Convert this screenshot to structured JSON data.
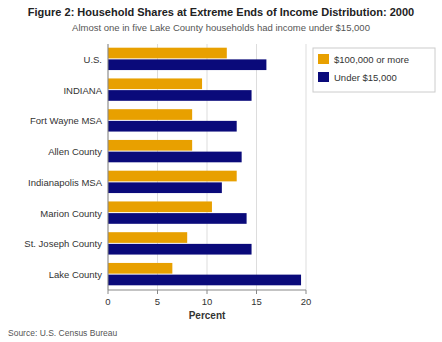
{
  "chart_data": {
    "type": "bar",
    "orientation": "horizontal",
    "title": "Figure 2: Household Shares at Extreme Ends of Income Distribution: 2000",
    "subtitle": "Almost one in five Lake County households had income under $15,000",
    "categories": [
      "U.S.",
      "INDIANA",
      "Fort Wayne MSA",
      "Allen County",
      "Indianapolis MSA",
      "Marion County",
      "St. Joseph County",
      "Lake County"
    ],
    "series": [
      {
        "name": "$100,000 or more",
        "color": "#E8A000",
        "values": [
          12.0,
          9.5,
          8.5,
          8.5,
          13.0,
          10.5,
          8.0,
          6.5
        ]
      },
      {
        "name": "Under $15,000",
        "color": "#0A0A7A",
        "values": [
          16.0,
          14.5,
          13.0,
          13.5,
          11.5,
          14.0,
          14.5,
          19.5
        ]
      }
    ],
    "xlabel": "Percent",
    "xlim": [
      0,
      20
    ],
    "xticks": [
      0,
      5,
      10,
      15,
      20
    ],
    "grid": true,
    "legend": "right",
    "annotations": [
      "Source: U.S. Census Bureau"
    ]
  }
}
